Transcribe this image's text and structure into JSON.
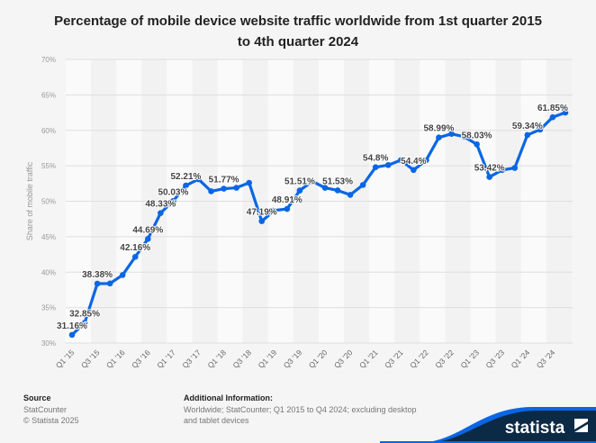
{
  "chart_data": {
    "type": "line",
    "title": "Percentage of mobile device website traffic worldwide from 1st quarter 2015 to 4th quarter 2024",
    "title_lines": [
      "Percentage of mobile device website traffic worldwide from 1st quarter 2015",
      "to 4th quarter 2024"
    ],
    "ylabel": "Share of mobile traffic",
    "xlabel": "",
    "ylim": [
      30,
      70
    ],
    "yticks": [
      30,
      35,
      40,
      45,
      50,
      55,
      60,
      65,
      70
    ],
    "ytick_labels": [
      "30%",
      "35%",
      "40%",
      "45%",
      "50%",
      "55%",
      "60%",
      "65%",
      "70%"
    ],
    "grid": true,
    "color": "#0a66e4",
    "categories": [
      "Q1 '15",
      "Q2 '15",
      "Q3 '15",
      "Q4 '15",
      "Q1 '16",
      "Q2 '16",
      "Q3 '16",
      "Q4 '16",
      "Q1 '17",
      "Q2 '17",
      "Q3 '17",
      "Q4 '17",
      "Q1 '18",
      "Q2 '18",
      "Q3 '18",
      "Q4 '18",
      "Q1 '19",
      "Q2 '19",
      "Q3 '19",
      "Q4 '19",
      "Q1 '20",
      "Q2 '20",
      "Q3 '20",
      "Q4 '20",
      "Q1 '21",
      "Q2 '21",
      "Q3 '21",
      "Q4 '21",
      "Q1 '22",
      "Q2 '22",
      "Q3 '22",
      "Q4 '22",
      "Q1 '23",
      "Q2 '23",
      "Q3 '23",
      "Q4 '23",
      "Q1 '24",
      "Q2 '24",
      "Q3 '24",
      "Q4 '24"
    ],
    "xtick_labels": [
      "Q1 '15",
      "Q3 '15",
      "Q1 '16",
      "Q3 '16",
      "Q1 '17",
      "Q3 '17",
      "Q1 '18",
      "Q3 '18",
      "Q1 '19",
      "Q3 '19",
      "Q1 '20",
      "Q3 '20",
      "Q1 '21",
      "Q3 '21",
      "Q1 '22",
      "Q3 '22",
      "Q1 '23",
      "Q3 '23",
      "Q1 '24",
      "Q3 '24"
    ],
    "values": [
      31.16,
      32.85,
      38.38,
      38.4,
      39.6,
      42.16,
      44.69,
      48.33,
      50.03,
      52.21,
      53.1,
      51.4,
      51.77,
      51.9,
      52.6,
      47.19,
      48.7,
      48.91,
      51.51,
      52.8,
      51.9,
      51.53,
      50.9,
      52.3,
      54.8,
      55.1,
      55.8,
      54.4,
      55.8,
      58.99,
      59.5,
      59.1,
      58.03,
      53.42,
      54.4,
      54.7,
      59.34,
      60.1,
      61.85,
      62.5
    ],
    "data_labels": [
      {
        "index": 0,
        "text": "31.16%"
      },
      {
        "index": 1,
        "text": "32.85%"
      },
      {
        "index": 2,
        "text": "38.38%"
      },
      {
        "index": 5,
        "text": "42.16%"
      },
      {
        "index": 6,
        "text": "44.69%"
      },
      {
        "index": 7,
        "text": "48.33%"
      },
      {
        "index": 8,
        "text": "50.03%"
      },
      {
        "index": 9,
        "text": "52.21%"
      },
      {
        "index": 12,
        "text": "51.77%"
      },
      {
        "index": 15,
        "text": "47.19%"
      },
      {
        "index": 17,
        "text": "48.91%"
      },
      {
        "index": 18,
        "text": "51.51%"
      },
      {
        "index": 21,
        "text": "51.53%"
      },
      {
        "index": 24,
        "text": "54.8%"
      },
      {
        "index": 27,
        "text": "54.4%"
      },
      {
        "index": 29,
        "text": "58.99%"
      },
      {
        "index": 32,
        "text": "58.03%"
      },
      {
        "index": 33,
        "text": "53.42%"
      },
      {
        "index": 36,
        "text": "59.34%"
      },
      {
        "index": 38,
        "text": "61.85%"
      }
    ]
  },
  "footer": {
    "source_heading": "Source",
    "source_name": "StatCounter",
    "copyright": "© Statista 2025",
    "info_heading": "Additional Information:",
    "info_text": "Worldwide; StatCounter; Q1 2015 to Q4 2024; excluding desktop and tablet devices"
  },
  "brand": {
    "name": "statista",
    "dark": "#0b2a46",
    "accent": "#0a66e4"
  }
}
